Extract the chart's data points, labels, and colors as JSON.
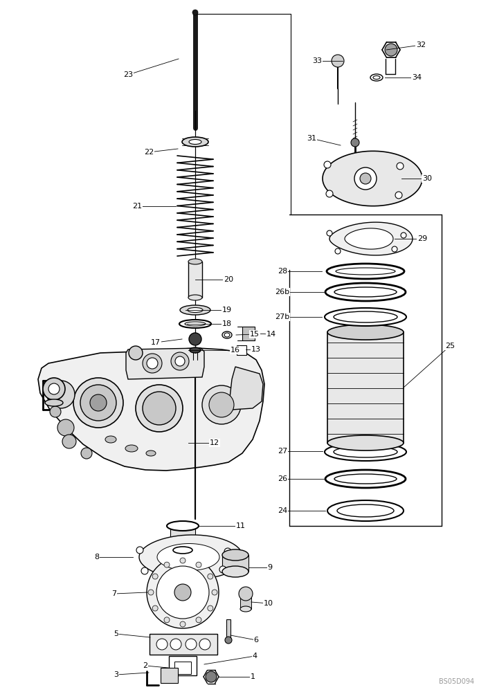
{
  "bg_color": "#ffffff",
  "line_color": "#000000",
  "watermark": "BS05D094",
  "fig_width": 6.92,
  "fig_height": 10.0,
  "dpi": 100
}
